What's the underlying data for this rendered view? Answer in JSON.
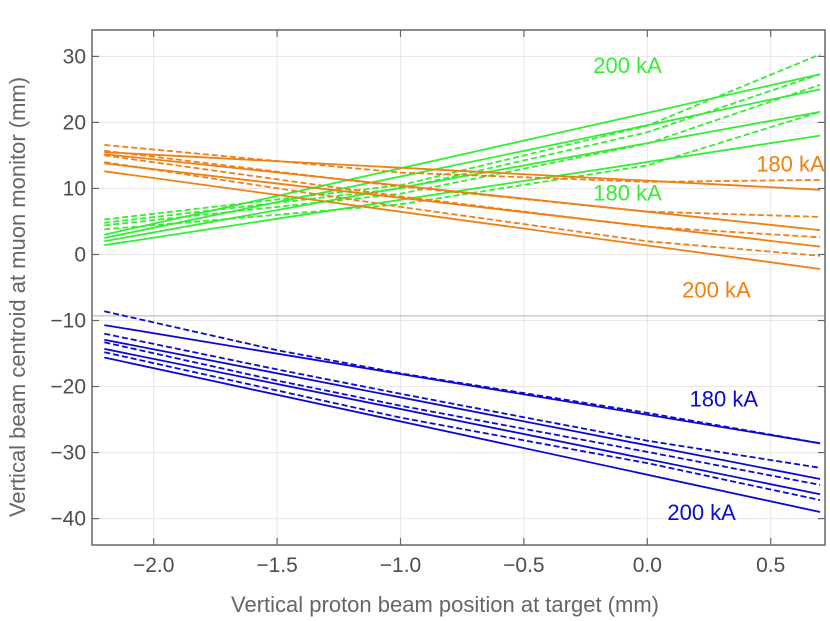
{
  "chart_data": {
    "type": "line",
    "xlabel": "Vertical proton beam position at target (mm)",
    "ylabel": "Vertical beam centroid at muon monitor (mm)",
    "xlim": [
      -2.25,
      0.72
    ],
    "ylim": [
      -44,
      34
    ],
    "grid": true,
    "x_ticks": [
      "−2.0",
      "−1.5",
      "−1.0",
      "−0.5",
      "0.0",
      "0.5"
    ],
    "x_tick_values": [
      -2.0,
      -1.5,
      -1.0,
      -0.5,
      0.0,
      0.5
    ],
    "y_ticks": [
      "30",
      "20",
      "10",
      "0",
      "−10",
      "−20",
      "−30",
      "−40"
    ],
    "y_tick_values": [
      30,
      20,
      10,
      0,
      -10,
      -20,
      -30,
      -40
    ],
    "zero_line_y": -9.3,
    "colors": {
      "green": "#33ee33",
      "orange": "#f07f14",
      "blue": "#0a0ad0",
      "grid": "#e6e6e6",
      "axis": "#666666"
    },
    "annotations": [
      {
        "text": "200 kA",
        "x": -0.08,
        "y": 28.7,
        "color": "#33ee33"
      },
      {
        "text": "180 kA",
        "x": 0.58,
        "y": 13.8,
        "color": "#f07f14"
      },
      {
        "text": "180 kA",
        "x": -0.08,
        "y": 9.4,
        "color": "#33ee33"
      },
      {
        "text": "200 kA",
        "x": 0.28,
        "y": -5.3,
        "color": "#f07f14"
      },
      {
        "text": "180 kA",
        "x": 0.31,
        "y": -21.8,
        "color": "#0a0ad0"
      },
      {
        "text": "200 kA",
        "x": 0.22,
        "y": -39.0,
        "color": "#0a0ad0"
      }
    ],
    "series": [
      {
        "name": "green-solid-1",
        "color": "green",
        "dash": false,
        "x": [
          -2.2,
          0.7
        ],
        "y": [
          3.0,
          27.3
        ]
      },
      {
        "name": "green-solid-2",
        "color": "green",
        "dash": false,
        "x": [
          -2.2,
          0.7
        ],
        "y": [
          2.5,
          25.0
        ]
      },
      {
        "name": "green-solid-3",
        "color": "green",
        "dash": false,
        "x": [
          -2.2,
          0.7
        ],
        "y": [
          2.0,
          21.6
        ]
      },
      {
        "name": "green-solid-4",
        "color": "green",
        "dash": false,
        "x": [
          -2.2,
          0.7
        ],
        "y": [
          1.4,
          18.0
        ]
      },
      {
        "name": "green-dashed-1",
        "color": "green",
        "dash": true,
        "x": [
          -2.2,
          -1.0,
          0.0,
          0.7
        ],
        "y": [
          5.3,
          10.5,
          19.5,
          30.3
        ]
      },
      {
        "name": "green-dashed-2",
        "color": "green",
        "dash": true,
        "x": [
          -2.2,
          -1.0,
          0.0,
          0.7
        ],
        "y": [
          4.8,
          10.0,
          18.5,
          27.3
        ]
      },
      {
        "name": "green-dashed-3",
        "color": "green",
        "dash": true,
        "x": [
          -2.2,
          -1.0,
          0.0,
          0.7
        ],
        "y": [
          4.4,
          9.2,
          16.8,
          25.7
        ]
      },
      {
        "name": "green-dashed-4",
        "color": "green",
        "dash": true,
        "x": [
          -2.2,
          -1.0,
          0.0,
          0.7
        ],
        "y": [
          3.8,
          7.6,
          13.5,
          21.6
        ]
      },
      {
        "name": "orange-solid-1",
        "color": "orange",
        "dash": false,
        "x": [
          -2.2,
          0.7
        ],
        "y": [
          15.5,
          9.8
        ]
      },
      {
        "name": "orange-solid-2",
        "color": "orange",
        "dash": false,
        "x": [
          -2.2,
          0.7
        ],
        "y": [
          15.2,
          3.7
        ]
      },
      {
        "name": "orange-solid-3",
        "color": "orange",
        "dash": false,
        "x": [
          -2.2,
          0.7
        ],
        "y": [
          13.8,
          1.2
        ]
      },
      {
        "name": "orange-solid-4",
        "color": "orange",
        "dash": false,
        "x": [
          -2.2,
          0.7
        ],
        "y": [
          12.6,
          -2.2
        ]
      },
      {
        "name": "orange-dashed-1",
        "color": "orange",
        "dash": true,
        "x": [
          -2.2,
          -1.0,
          0.0,
          0.7
        ],
        "y": [
          16.6,
          12.4,
          11.0,
          11.3
        ]
      },
      {
        "name": "orange-dashed-2",
        "color": "orange",
        "dash": true,
        "x": [
          -2.2,
          -1.0,
          0.0,
          0.7
        ],
        "y": [
          15.7,
          10.3,
          6.5,
          5.7
        ]
      },
      {
        "name": "orange-dashed-3",
        "color": "orange",
        "dash": true,
        "x": [
          -2.2,
          -1.0,
          0.0,
          0.7
        ],
        "y": [
          15.0,
          8.8,
          4.2,
          2.6
        ]
      },
      {
        "name": "orange-dashed-4",
        "color": "orange",
        "dash": true,
        "x": [
          -2.2,
          -1.0,
          0.0,
          0.7
        ],
        "y": [
          14.0,
          7.2,
          2.0,
          -0.2
        ]
      },
      {
        "name": "blue-solid-1",
        "color": "blue",
        "dash": false,
        "x": [
          -2.2,
          0.7
        ],
        "y": [
          -10.7,
          -28.6
        ]
      },
      {
        "name": "blue-solid-2",
        "color": "blue",
        "dash": false,
        "x": [
          -2.2,
          0.7
        ],
        "y": [
          -12.9,
          -34.0
        ]
      },
      {
        "name": "blue-solid-3",
        "color": "blue",
        "dash": false,
        "x": [
          -2.2,
          0.7
        ],
        "y": [
          -14.3,
          -36.3
        ]
      },
      {
        "name": "blue-solid-4",
        "color": "blue",
        "dash": false,
        "x": [
          -2.2,
          0.7
        ],
        "y": [
          -15.6,
          -39.0
        ]
      },
      {
        "name": "blue-dashed-1",
        "color": "blue",
        "dash": true,
        "x": [
          -2.2,
          -1.5,
          -1.0,
          0.0,
          0.7
        ],
        "y": [
          -8.6,
          -14.5,
          -18.0,
          -24.0,
          -28.6
        ]
      },
      {
        "name": "blue-dashed-2",
        "color": "blue",
        "dash": true,
        "x": [
          -2.2,
          -1.5,
          -1.0,
          0.0,
          0.7
        ],
        "y": [
          -12.0,
          -17.4,
          -21.1,
          -28.2,
          -32.3
        ]
      },
      {
        "name": "blue-dashed-3",
        "color": "blue",
        "dash": true,
        "x": [
          -2.2,
          -1.5,
          -1.0,
          0.0,
          0.7
        ],
        "y": [
          -13.3,
          -19.1,
          -22.9,
          -29.9,
          -34.9
        ]
      },
      {
        "name": "blue-dashed-4",
        "color": "blue",
        "dash": true,
        "x": [
          -2.2,
          -1.5,
          -1.0,
          0.0,
          0.7
        ],
        "y": [
          -14.8,
          -20.6,
          -24.7,
          -31.6,
          -37.2
        ]
      }
    ]
  }
}
